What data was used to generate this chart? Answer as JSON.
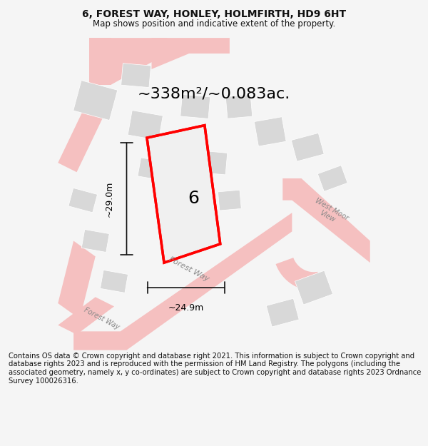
{
  "title_line1": "6, FOREST WAY, HONLEY, HOLMFIRTH, HD9 6HT",
  "title_line2": "Map shows position and indicative extent of the property.",
  "area_text": "~338m²/~0.083ac.",
  "label_number": "6",
  "dim_width": "~24.9m",
  "dim_height": "~29.0m",
  "footer_text": "Contains OS data © Crown copyright and database right 2021. This information is subject to Crown copyright and database rights 2023 and is reproduced with the permission of HM Land Registry. The polygons (including the associated geometry, namely x, y co-ordinates) are subject to Crown copyright and database rights 2023 Ordnance Survey 100026316.",
  "bg_color": "#f5f5f5",
  "map_bg": "#ffffff",
  "road_color": "#f5c0c0",
  "building_color": "#d8d8d8",
  "plot_color": "#f0f0f0",
  "red_outline": "#ff0000",
  "dim_line_color": "#111111",
  "road_label_color": "#888888",
  "title_color": "#111111",
  "footer_color": "#111111"
}
